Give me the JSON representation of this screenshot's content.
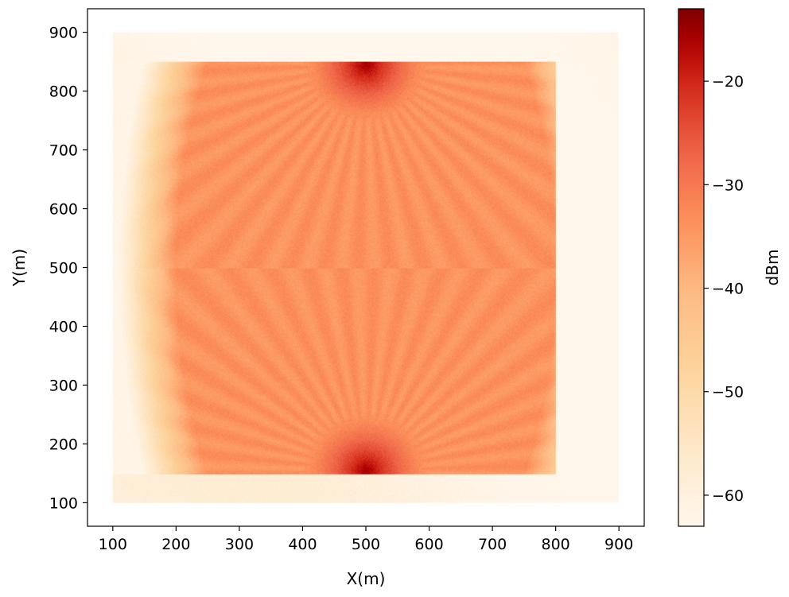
{
  "chart_data": {
    "type": "heatmap",
    "title": "",
    "xlabel": "X(m)",
    "ylabel": "Y(m)",
    "xlim": [
      60,
      940
    ],
    "ylim": [
      60,
      940
    ],
    "x_ticks": [
      100,
      200,
      300,
      400,
      500,
      600,
      700,
      800,
      900
    ],
    "y_ticks": [
      100,
      200,
      300,
      400,
      500,
      600,
      700,
      800,
      900
    ],
    "x_tick_labels": [
      "100",
      "200",
      "300",
      "400",
      "500",
      "600",
      "700",
      "800",
      "900"
    ],
    "y_tick_labels": [
      "100",
      "200",
      "300",
      "400",
      "500",
      "600",
      "700",
      "800",
      "900"
    ],
    "colormap": "OrRd",
    "colorbar": {
      "label": "dBm",
      "range": [
        -63,
        -13
      ],
      "ticks": [
        -20,
        -30,
        -40,
        -50,
        -60
      ],
      "tick_labels": [
        "−20",
        "−30",
        "−40",
        "−50",
        "−60"
      ]
    },
    "field": {
      "outer_region": {
        "x": [
          100,
          900
        ],
        "y": [
          100,
          900
        ]
      },
      "inner_region": {
        "x": [
          100,
          800
        ],
        "y": [
          150,
          850
        ]
      },
      "sources": [
        {
          "x": 500,
          "y": 845,
          "peak_dbm": -15
        },
        {
          "x": 500,
          "y": 155,
          "peak_dbm": -15
        }
      ],
      "background_dbm": -62,
      "lobe_dbm": -34
    },
    "grid": false,
    "legend": "none"
  }
}
